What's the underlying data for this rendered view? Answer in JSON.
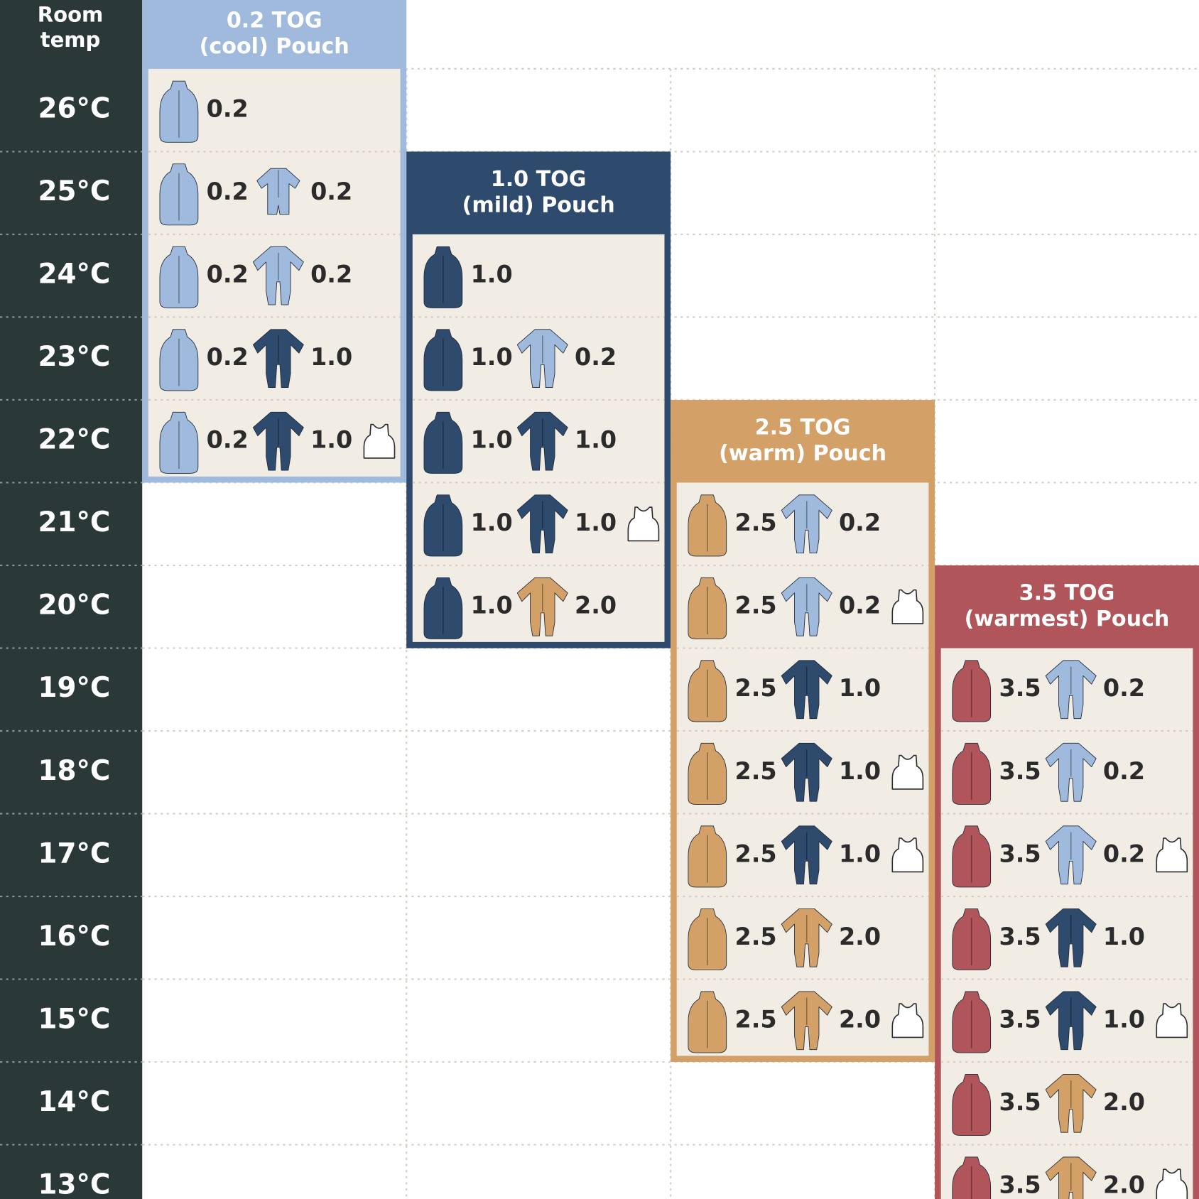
{
  "header": {
    "title": [
      "Room",
      "temp"
    ]
  },
  "pouches": [
    {
      "title": [
        "0.2 TOG",
        "(cool) Pouch"
      ],
      "color": "#9fbadc"
    },
    {
      "title": [
        "1.0 TOG",
        "(mild) Pouch"
      ],
      "color": "#2e4b6e"
    },
    {
      "title": [
        "2.5 TOG",
        "(warm) Pouch"
      ],
      "color": "#d3a168"
    },
    {
      "title": [
        "3.5 TOG",
        "(warmest) Pouch"
      ],
      "color": "#b0565b"
    }
  ],
  "rows": [
    {
      "temp": "26°C",
      "cells": [
        {
          "pouch": "0.2"
        },
        null,
        null,
        null
      ]
    },
    {
      "temp": "25°C",
      "cells": [
        {
          "pouch": "0.2",
          "suit": {
            "tog": "0.2",
            "kind": "romper",
            "color": "#9fbadc"
          }
        },
        null,
        null,
        null
      ]
    },
    {
      "temp": "24°C",
      "cells": [
        {
          "pouch": "0.2",
          "suit": {
            "tog": "0.2",
            "kind": "sleepsuit",
            "color": "#9fbadc"
          }
        },
        {
          "pouch": "1.0"
        },
        null,
        null
      ]
    },
    {
      "temp": "23°C",
      "cells": [
        {
          "pouch": "0.2",
          "suit": {
            "tog": "1.0",
            "kind": "sleepsuit",
            "color": "#2e4b6e"
          }
        },
        {
          "pouch": "1.0",
          "suit": {
            "tog": "0.2",
            "kind": "sleepsuit",
            "color": "#9fbadc"
          }
        },
        null,
        null
      ]
    },
    {
      "temp": "22°C",
      "cells": [
        {
          "pouch": "0.2",
          "suit": {
            "tog": "1.0",
            "kind": "sleepsuit",
            "color": "#2e4b6e"
          },
          "vest": true
        },
        {
          "pouch": "1.0",
          "suit": {
            "tog": "1.0",
            "kind": "sleepsuit",
            "color": "#2e4b6e"
          }
        },
        null,
        null
      ]
    },
    {
      "temp": "21°C",
      "cells": [
        null,
        {
          "pouch": "1.0",
          "suit": {
            "tog": "1.0",
            "kind": "sleepsuit",
            "color": "#2e4b6e"
          },
          "vest": true
        },
        {
          "pouch": "2.5",
          "suit": {
            "tog": "0.2",
            "kind": "sleepsuit",
            "color": "#9fbadc"
          }
        },
        null
      ]
    },
    {
      "temp": "20°C",
      "cells": [
        null,
        {
          "pouch": "1.0",
          "suit": {
            "tog": "2.0",
            "kind": "sleepsuit",
            "color": "#d3a168"
          }
        },
        {
          "pouch": "2.5",
          "suit": {
            "tog": "0.2",
            "kind": "sleepsuit",
            "color": "#9fbadc"
          },
          "vest": true
        },
        null
      ]
    },
    {
      "temp": "19°C",
      "cells": [
        null,
        null,
        {
          "pouch": "2.5",
          "suit": {
            "tog": "1.0",
            "kind": "sleepsuit",
            "color": "#2e4b6e"
          }
        },
        {
          "pouch": "3.5",
          "suit": {
            "tog": "0.2",
            "kind": "sleepsuit",
            "color": "#9fbadc"
          }
        }
      ]
    },
    {
      "temp": "18°C",
      "cells": [
        null,
        null,
        {
          "pouch": "2.5",
          "suit": {
            "tog": "1.0",
            "kind": "sleepsuit",
            "color": "#2e4b6e"
          },
          "vest": true
        },
        {
          "pouch": "3.5",
          "suit": {
            "tog": "0.2",
            "kind": "sleepsuit",
            "color": "#9fbadc"
          }
        }
      ]
    },
    {
      "temp": "17°C",
      "cells": [
        null,
        null,
        {
          "pouch": "2.5",
          "suit": {
            "tog": "1.0",
            "kind": "sleepsuit",
            "color": "#2e4b6e"
          },
          "vest": true
        },
        {
          "pouch": "3.5",
          "suit": {
            "tog": "0.2",
            "kind": "sleepsuit",
            "color": "#9fbadc"
          },
          "vest": true
        }
      ]
    },
    {
      "temp": "16°C",
      "cells": [
        null,
        null,
        {
          "pouch": "2.5",
          "suit": {
            "tog": "2.0",
            "kind": "sleepsuit",
            "color": "#d3a168"
          }
        },
        {
          "pouch": "3.5",
          "suit": {
            "tog": "1.0",
            "kind": "sleepsuit",
            "color": "#2e4b6e"
          }
        }
      ]
    },
    {
      "temp": "15°C",
      "cells": [
        null,
        null,
        {
          "pouch": "2.5",
          "suit": {
            "tog": "2.0",
            "kind": "sleepsuit",
            "color": "#d3a168"
          },
          "vest": true
        },
        {
          "pouch": "3.5",
          "suit": {
            "tog": "1.0",
            "kind": "sleepsuit",
            "color": "#2e4b6e"
          },
          "vest": true
        }
      ]
    },
    {
      "temp": "14°C",
      "cells": [
        null,
        null,
        null,
        {
          "pouch": "3.5",
          "suit": {
            "tog": "2.0",
            "kind": "sleepsuit",
            "color": "#d3a168"
          }
        }
      ]
    },
    {
      "temp": "13°C",
      "cells": [
        null,
        null,
        null,
        {
          "pouch": "3.5",
          "suit": {
            "tog": "2.0",
            "kind": "sleepsuit",
            "color": "#d3a168"
          },
          "vest": true
        }
      ]
    }
  ]
}
